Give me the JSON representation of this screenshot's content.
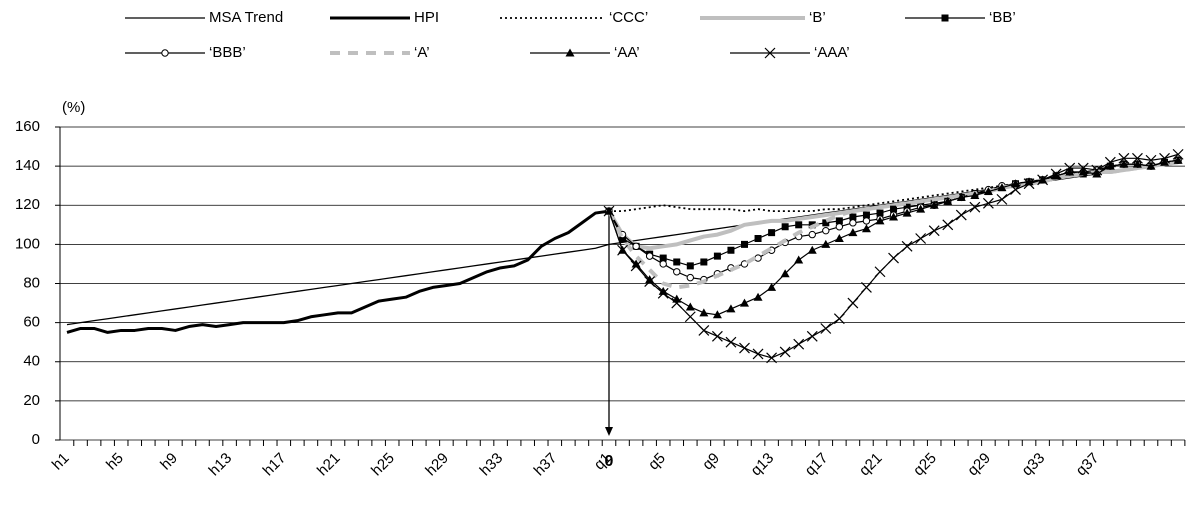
{
  "chart_data": {
    "type": "line",
    "y_label": "(%)",
    "annotation": "0",
    "ylim": [
      0,
      160
    ],
    "yticks": [
      0,
      20,
      40,
      60,
      80,
      100,
      120,
      140,
      160
    ],
    "grid": true,
    "categories": [
      "h1",
      null,
      null,
      null,
      "h5",
      null,
      null,
      null,
      "h9",
      null,
      null,
      null,
      "h13",
      null,
      null,
      null,
      "h17",
      null,
      null,
      null,
      "h21",
      null,
      null,
      null,
      "h25",
      null,
      null,
      null,
      "h29",
      null,
      null,
      null,
      "h33",
      null,
      null,
      null,
      "h37",
      null,
      null,
      null,
      "q1",
      null,
      null,
      null,
      "q5",
      null,
      null,
      null,
      "q9",
      null,
      null,
      null,
      "q13",
      null,
      null,
      null,
      "q17",
      null,
      null,
      null,
      "q21",
      null,
      null,
      null,
      "q25",
      null,
      null,
      null,
      "q29",
      null,
      null,
      null,
      "q33",
      null,
      null,
      null,
      "q37",
      null,
      null,
      null,
      null,
      null,
      null
    ],
    "series": [
      {
        "name": "MSA Trend",
        "color": "#000000",
        "width": 1.3,
        "values": [
          59,
          60,
          61,
          62,
          63,
          64,
          65,
          66,
          67,
          68,
          69,
          70,
          71,
          72,
          73,
          74,
          75,
          76,
          77,
          78,
          79,
          80,
          81,
          82,
          83,
          84,
          85,
          86,
          87,
          88,
          89,
          90,
          91,
          92,
          93,
          94,
          95,
          96,
          97,
          98,
          100,
          101,
          102,
          103,
          104,
          105,
          106,
          107,
          108,
          109,
          110,
          111,
          112,
          113,
          114,
          115,
          116,
          117,
          118,
          119,
          120,
          121,
          122,
          123,
          124,
          125,
          126,
          127,
          128,
          129,
          130,
          131,
          132,
          133,
          134,
          135,
          136,
          137,
          138,
          139,
          140,
          141,
          142
        ]
      },
      {
        "name": "HPI",
        "color": "#000000",
        "width": 3,
        "values": [
          55,
          57,
          57,
          55,
          56,
          56,
          57,
          57,
          56,
          58,
          59,
          58,
          59,
          60,
          60,
          60,
          60,
          61,
          63,
          64,
          65,
          65,
          68,
          71,
          72,
          73,
          76,
          78,
          79,
          80,
          83,
          86,
          88,
          89,
          92,
          99,
          103,
          106,
          111,
          116,
          117,
          null,
          null,
          null,
          null,
          null,
          null,
          null,
          null,
          null,
          null,
          null,
          null,
          null,
          null,
          null,
          null,
          null,
          null,
          null,
          null,
          null,
          null,
          null,
          null,
          null,
          null,
          null,
          null,
          null,
          null,
          null,
          null,
          null,
          null,
          null,
          null,
          null,
          null,
          null,
          null,
          null,
          null
        ]
      },
      {
        "name": "‘CCC’",
        "color": "#000000",
        "width": 1.8,
        "style": "dotted",
        "values": [
          null,
          null,
          null,
          null,
          null,
          null,
          null,
          null,
          null,
          null,
          null,
          null,
          null,
          null,
          null,
          null,
          null,
          null,
          null,
          null,
          null,
          null,
          null,
          null,
          null,
          null,
          null,
          null,
          null,
          null,
          null,
          null,
          null,
          null,
          null,
          null,
          null,
          null,
          null,
          null,
          117,
          117,
          118,
          119,
          120,
          119,
          118,
          118,
          118,
          118,
          117,
          118,
          117,
          117,
          117,
          117,
          118,
          118,
          119,
          120,
          121,
          122,
          123,
          124,
          125,
          126,
          127,
          128,
          129,
          130,
          131,
          132,
          133,
          134,
          135,
          136,
          137,
          137,
          138,
          139,
          140,
          141,
          142
        ]
      },
      {
        "name": "‘B’",
        "color": "#bfbfbf",
        "width": 4,
        "values": [
          null,
          null,
          null,
          null,
          null,
          null,
          null,
          null,
          null,
          null,
          null,
          null,
          null,
          null,
          null,
          null,
          null,
          null,
          null,
          null,
          null,
          null,
          null,
          null,
          null,
          null,
          null,
          null,
          null,
          null,
          null,
          null,
          null,
          null,
          null,
          null,
          null,
          null,
          null,
          null,
          117,
          105,
          99,
          98,
          99,
          100,
          102,
          104,
          105,
          107,
          110,
          111,
          112,
          112,
          113,
          114,
          115,
          116,
          117,
          118,
          119,
          120,
          121,
          122,
          123,
          124,
          125,
          126,
          127,
          129,
          130,
          131,
          132,
          134,
          135,
          136,
          137,
          137,
          138,
          139,
          140,
          141,
          142
        ]
      },
      {
        "name": "‘BB’",
        "color": "#000000",
        "width": 1.2,
        "marker": "square",
        "values": [
          null,
          null,
          null,
          null,
          null,
          null,
          null,
          null,
          null,
          null,
          null,
          null,
          null,
          null,
          null,
          null,
          null,
          null,
          null,
          null,
          null,
          null,
          null,
          null,
          null,
          null,
          null,
          null,
          null,
          null,
          null,
          null,
          null,
          null,
          null,
          null,
          null,
          null,
          null,
          null,
          117,
          103,
          99,
          95,
          93,
          91,
          89,
          91,
          94,
          97,
          100,
          103,
          106,
          109,
          110,
          110,
          111,
          112,
          114,
          115,
          116,
          118,
          119,
          120,
          121,
          122,
          124,
          126,
          127,
          129,
          131,
          132,
          133,
          135,
          137,
          136,
          137,
          140,
          141,
          141,
          140,
          142,
          143
        ]
      },
      {
        "name": "‘BBB’",
        "color": "#000000",
        "width": 1.2,
        "marker": "circle",
        "values": [
          null,
          null,
          null,
          null,
          null,
          null,
          null,
          null,
          null,
          null,
          null,
          null,
          null,
          null,
          null,
          null,
          null,
          null,
          null,
          null,
          null,
          null,
          null,
          null,
          null,
          null,
          null,
          null,
          null,
          null,
          null,
          null,
          null,
          null,
          null,
          null,
          null,
          null,
          null,
          null,
          117,
          105,
          99,
          94,
          90,
          86,
          83,
          82,
          85,
          88,
          90,
          93,
          97,
          101,
          104,
          105,
          107,
          109,
          111,
          112,
          113,
          115,
          117,
          119,
          120,
          122,
          124,
          126,
          128,
          130,
          131,
          132,
          133,
          135,
          137,
          137,
          138,
          140,
          141,
          141,
          140,
          142,
          143
        ]
      },
      {
        "name": "‘A’",
        "color": "#bfbfbf",
        "width": 4,
        "style": "dashed",
        "values": [
          null,
          null,
          null,
          null,
          null,
          null,
          null,
          null,
          null,
          null,
          null,
          null,
          null,
          null,
          null,
          null,
          null,
          null,
          null,
          null,
          null,
          null,
          null,
          null,
          null,
          null,
          null,
          null,
          null,
          null,
          null,
          null,
          null,
          null,
          null,
          null,
          null,
          null,
          null,
          null,
          117,
          103,
          94,
          87,
          80,
          78,
          79,
          81,
          84,
          87,
          90,
          94,
          98,
          102,
          106,
          109,
          112,
          115,
          117,
          118,
          119,
          120,
          121,
          122,
          123,
          124,
          125,
          126,
          127,
          129,
          130,
          131,
          133,
          134,
          135,
          136,
          137,
          137,
          138,
          139,
          140,
          141,
          142
        ]
      },
      {
        "name": "‘AA’",
        "color": "#000000",
        "width": 1.2,
        "marker": "triangle",
        "values": [
          null,
          null,
          null,
          null,
          null,
          null,
          null,
          null,
          null,
          null,
          null,
          null,
          null,
          null,
          null,
          null,
          null,
          null,
          null,
          null,
          null,
          null,
          null,
          null,
          null,
          null,
          null,
          null,
          null,
          null,
          null,
          null,
          null,
          null,
          null,
          null,
          null,
          null,
          null,
          null,
          117,
          97,
          90,
          82,
          76,
          72,
          68,
          65,
          64,
          67,
          70,
          73,
          78,
          85,
          92,
          97,
          100,
          103,
          106,
          108,
          112,
          114,
          116,
          118,
          120,
          122,
          124,
          125,
          127,
          129,
          131,
          132,
          133,
          135,
          137,
          137,
          136,
          140,
          141,
          141,
          140,
          142,
          143
        ]
      },
      {
        "name": "‘AAA’",
        "color": "#000000",
        "width": 1.2,
        "marker": "cross",
        "values": [
          null,
          null,
          null,
          null,
          null,
          null,
          null,
          null,
          null,
          null,
          null,
          null,
          null,
          null,
          null,
          null,
          null,
          null,
          null,
          null,
          null,
          null,
          null,
          null,
          null,
          null,
          null,
          null,
          null,
          null,
          null,
          null,
          null,
          null,
          null,
          null,
          null,
          null,
          null,
          null,
          117,
          97,
          89,
          81,
          75,
          70,
          63,
          56,
          53,
          50,
          47,
          44,
          42,
          45,
          49,
          53,
          57,
          62,
          70,
          78,
          86,
          93,
          99,
          103,
          107,
          110,
          115,
          119,
          121,
          123,
          128,
          131,
          133,
          136,
          139,
          139,
          138,
          142,
          144,
          144,
          143,
          144,
          146
        ]
      }
    ]
  }
}
